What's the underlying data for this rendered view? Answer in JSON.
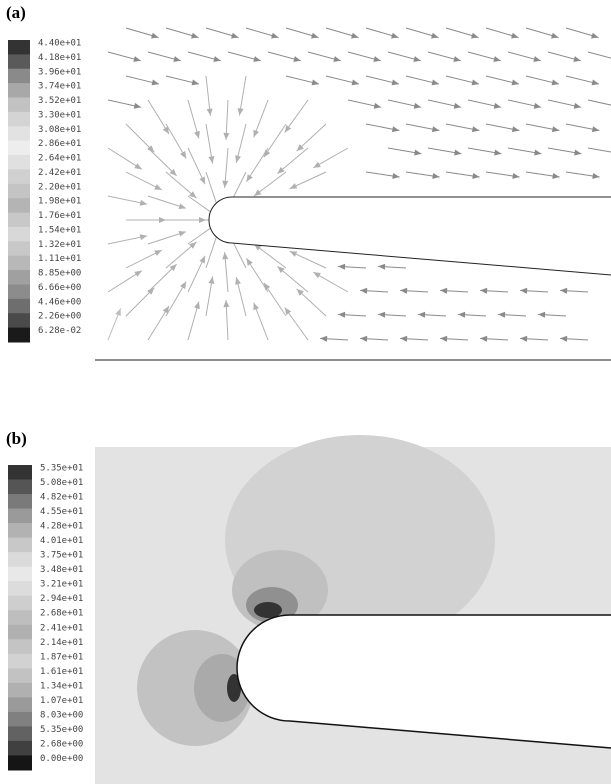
{
  "panels": [
    {
      "label": "(a)",
      "legend": [
        {
          "label": "4.40e+01",
          "color": "#333333"
        },
        {
          "label": "4.18e+01",
          "color": "#5a5a5a"
        },
        {
          "label": "3.96e+01",
          "color": "#8a8a8a"
        },
        {
          "label": "3.74e+01",
          "color": "#a8a8a8"
        },
        {
          "label": "3.52e+01",
          "color": "#c2c2c2"
        },
        {
          "label": "3.30e+01",
          "color": "#d4d4d4"
        },
        {
          "label": "3.08e+01",
          "color": "#e2e2e2"
        },
        {
          "label": "2.86e+01",
          "color": "#ededed"
        },
        {
          "label": "2.64e+01",
          "color": "#e0e0e0"
        },
        {
          "label": "2.42e+01",
          "color": "#d0d0d0"
        },
        {
          "label": "2.20e+01",
          "color": "#c4c4c4"
        },
        {
          "label": "1.98e+01",
          "color": "#b4b4b4"
        },
        {
          "label": "1.76e+01",
          "color": "#c8c8c8"
        },
        {
          "label": "1.54e+01",
          "color": "#d8d8d8"
        },
        {
          "label": "1.32e+01",
          "color": "#c8c8c8"
        },
        {
          "label": "1.11e+01",
          "color": "#b8b8b8"
        },
        {
          "label": "8.85e+00",
          "color": "#a0a0a0"
        },
        {
          "label": "6.66e+00",
          "color": "#8c8c8c"
        },
        {
          "label": "4.46e+00",
          "color": "#6e6e6e"
        },
        {
          "label": "2.26e+00",
          "color": "#4a4a4a"
        },
        {
          "label": "6.28e-02",
          "color": "#1a1a1a"
        }
      ]
    },
    {
      "label": "(b)",
      "legend": [
        {
          "label": "5.35e+01",
          "color": "#333333"
        },
        {
          "label": "5.08e+01",
          "color": "#555555"
        },
        {
          "label": "4.82e+01",
          "color": "#7a7a7a"
        },
        {
          "label": "4.55e+01",
          "color": "#9a9a9a"
        },
        {
          "label": "4.28e+01",
          "color": "#b2b2b2"
        },
        {
          "label": "4.01e+01",
          "color": "#c8c8c8"
        },
        {
          "label": "3.75e+01",
          "color": "#dadada"
        },
        {
          "label": "3.48e+01",
          "color": "#e8e8e8"
        },
        {
          "label": "3.21e+01",
          "color": "#dcdcdc"
        },
        {
          "label": "2.94e+01",
          "color": "#cecece"
        },
        {
          "label": "2.68e+01",
          "color": "#bebebe"
        },
        {
          "label": "2.41e+01",
          "color": "#b0b0b0"
        },
        {
          "label": "2.14e+01",
          "color": "#c4c4c4"
        },
        {
          "label": "1.87e+01",
          "color": "#d2d2d2"
        },
        {
          "label": "1.61e+01",
          "color": "#c2c2c2"
        },
        {
          "label": "1.34e+01",
          "color": "#b0b0b0"
        },
        {
          "label": "1.07e+01",
          "color": "#9a9a9a"
        },
        {
          "label": "8.03e+00",
          "color": "#808080"
        },
        {
          "label": "5.35e+00",
          "color": "#626262"
        },
        {
          "label": "2.68e+00",
          "color": "#404040"
        },
        {
          "label": "0.00e+00",
          "color": "#151515"
        }
      ]
    }
  ]
}
